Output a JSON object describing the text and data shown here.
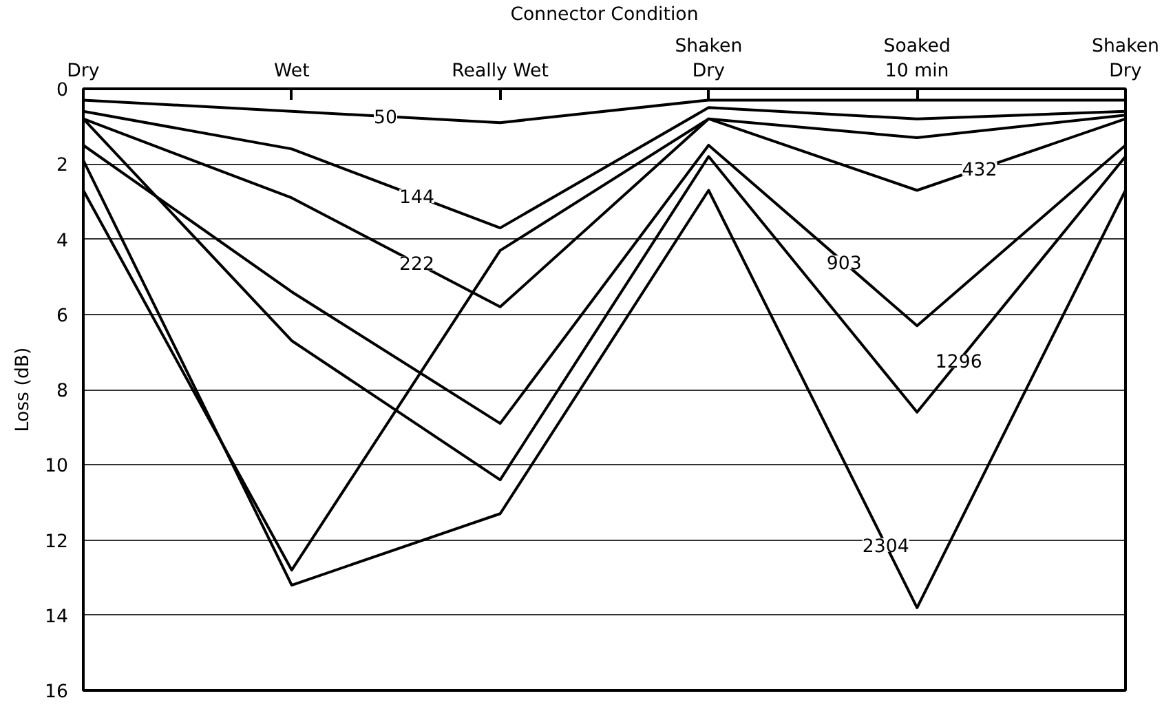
{
  "chart_data": {
    "type": "line",
    "xlabel": "Connector Condition",
    "ylabel": "Loss (dB)",
    "categories": [
      "Dry",
      "Wet",
      "Really Wet",
      "Shaken\nDry",
      "Soaked\n10 min",
      "Shaken\nDry"
    ],
    "ylim": [
      16,
      0
    ],
    "yticks": [
      0,
      2,
      4,
      6,
      8,
      10,
      12,
      14,
      16
    ],
    "grid": "y",
    "marker": "none",
    "line_style": "solid",
    "series": [
      {
        "name": "50",
        "color": "#000000",
        "values": [
          0.3,
          0.6,
          0.9,
          0.3,
          0.3,
          0.3
        ]
      },
      {
        "name": "144",
        "color": "#000000",
        "values": [
          0.6,
          1.6,
          3.7,
          0.5,
          0.8,
          0.6
        ]
      },
      {
        "name": "222",
        "color": "#000000",
        "values": [
          0.8,
          2.9,
          5.8,
          0.8,
          1.3,
          0.7
        ]
      },
      {
        "name": "432",
        "color": "#000000",
        "values": [
          2.7,
          12.8,
          4.3,
          0.8,
          2.7,
          0.8
        ]
      },
      {
        "name": "903",
        "color": "#000000",
        "values": [
          1.5,
          5.4,
          8.9,
          1.5,
          6.3,
          1.5
        ]
      },
      {
        "name": "1296",
        "color": "#000000",
        "values": [
          0.8,
          6.7,
          10.4,
          1.8,
          8.6,
          1.8
        ]
      },
      {
        "name": "2304",
        "color": "#000000",
        "values": [
          1.9,
          13.2,
          11.3,
          2.7,
          13.8,
          2.7
        ]
      }
    ]
  }
}
